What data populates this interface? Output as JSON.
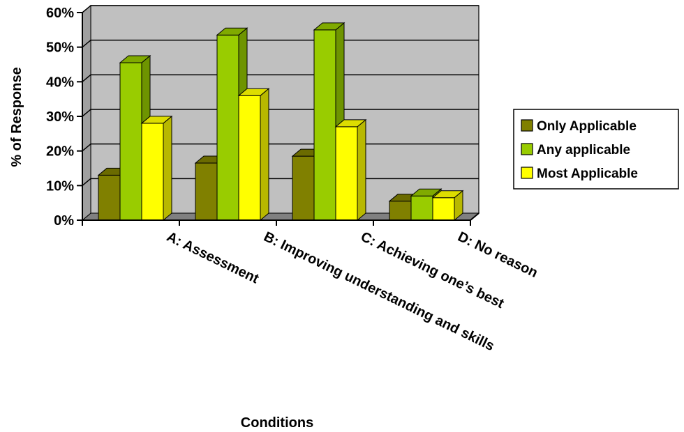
{
  "chart_data": {
    "type": "bar",
    "title": "",
    "xlabel": "Conditions",
    "ylabel": "% of Response",
    "ylim": [
      0,
      60
    ],
    "y_ticks": [
      "0%",
      "10%",
      "20%",
      "30%",
      "40%",
      "50%",
      "60%"
    ],
    "grid": true,
    "legend_position": "right",
    "categories": [
      "A: Assessment",
      "B: Improving understanding and skills",
      "C: Achieving one’s best",
      "D: No reason"
    ],
    "series": [
      {
        "name": "Only Applicable",
        "values": [
          13,
          16.5,
          18.5,
          5.5
        ]
      },
      {
        "name": "Any applicable",
        "values": [
          45.5,
          53.5,
          55,
          7
        ]
      },
      {
        "name": "Most Applicable",
        "values": [
          28,
          36,
          27,
          6.5
        ]
      }
    ],
    "colors": {
      "plot_background": "#c0c0c0",
      "floor": "#808080",
      "series_front": [
        "#808000",
        "#99cc00",
        "#ffff00"
      ],
      "series_side": [
        "#5c5c00",
        "#6e9400",
        "#b8b800"
      ],
      "series_top": [
        "#6b6b00",
        "#80aa00",
        "#dddd00"
      ]
    }
  }
}
